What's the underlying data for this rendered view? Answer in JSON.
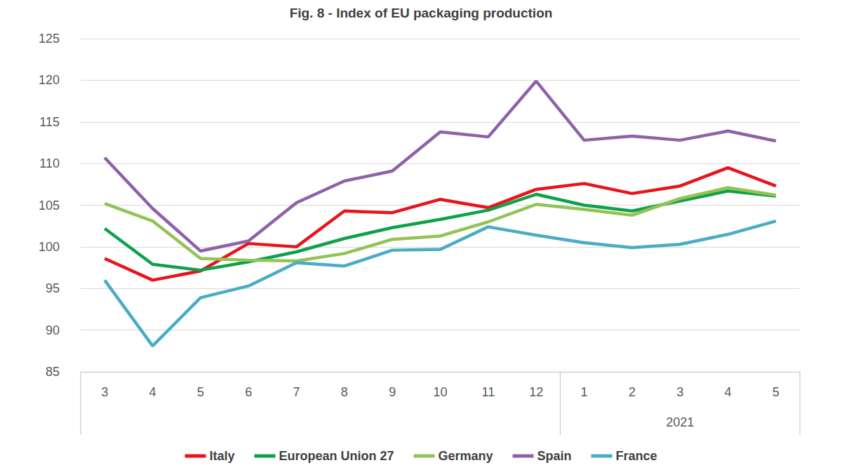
{
  "chart_data": {
    "type": "line",
    "title": "Fig. 8 - Index of EU packaging production",
    "categories": [
      "3",
      "4",
      "5",
      "6",
      "7",
      "8",
      "9",
      "10",
      "11",
      "12",
      "1",
      "2",
      "3",
      "4",
      "5"
    ],
    "x_group_label": "2021",
    "series": [
      {
        "name": "Italy",
        "color": "#e8141b",
        "values": [
          98.6,
          96.0,
          97.1,
          100.4,
          100.0,
          104.3,
          104.1,
          105.7,
          104.7,
          106.9,
          107.6,
          106.4,
          107.3,
          109.5,
          107.3
        ]
      },
      {
        "name": "European Union 27",
        "color": "#0fa14a",
        "values": [
          102.2,
          97.9,
          97.2,
          98.2,
          99.4,
          101.0,
          102.3,
          103.3,
          104.4,
          106.3,
          105.0,
          104.3,
          105.5,
          106.7,
          106.1
        ]
      },
      {
        "name": "Germany",
        "color": "#93c356",
        "values": [
          105.2,
          103.1,
          98.6,
          98.4,
          98.3,
          99.2,
          100.9,
          101.3,
          103.0,
          105.1,
          104.5,
          103.8,
          105.8,
          107.1,
          106.2
        ]
      },
      {
        "name": "Spain",
        "color": "#8e62a8",
        "values": [
          110.7,
          104.6,
          99.5,
          100.7,
          105.3,
          107.9,
          109.1,
          113.8,
          113.2,
          119.9,
          112.8,
          113.3,
          112.8,
          113.9,
          112.7
        ]
      },
      {
        "name": "France",
        "color": "#4aacc5",
        "values": [
          96.0,
          88.1,
          93.9,
          95.3,
          98.1,
          97.7,
          99.6,
          99.7,
          102.4,
          101.4,
          100.5,
          99.9,
          100.3,
          101.5,
          103.1
        ]
      }
    ],
    "ylim": [
      85,
      125
    ],
    "yticks": [
      85,
      90,
      95,
      100,
      105,
      110,
      115,
      120,
      125
    ],
    "grid": true,
    "legend": "bottom"
  }
}
